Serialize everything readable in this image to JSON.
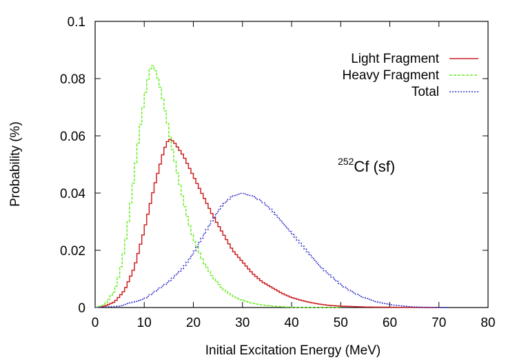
{
  "chart_data": {
    "type": "line",
    "title": "",
    "xlabel": "Initial Excitation Energy (MeV)",
    "ylabel": "Probability (%)",
    "xlim": [
      0,
      80
    ],
    "ylim": [
      0,
      0.1
    ],
    "xticks": [
      "0",
      "10",
      "20",
      "30",
      "40",
      "50",
      "60",
      "70",
      "80"
    ],
    "yticks": [
      "0",
      "0.02",
      "0.04",
      "0.06",
      "0.08",
      "0.1"
    ],
    "grid": false,
    "legend_position": "top-right",
    "annotation": {
      "superscript": "252",
      "text": "Cf (sf)"
    },
    "series": [
      {
        "name": "Light Fragment",
        "color": "#cc1f1f",
        "style": "solid",
        "x": [
          0,
          2,
          4,
          6,
          8,
          10,
          12,
          14,
          15,
          16,
          18,
          20,
          22,
          24,
          26,
          28,
          30,
          32,
          34,
          36,
          38,
          40,
          42,
          44,
          46,
          48,
          50,
          55,
          60,
          65,
          70
        ],
        "y": [
          0,
          0.0005,
          0.002,
          0.006,
          0.014,
          0.027,
          0.042,
          0.055,
          0.059,
          0.058,
          0.053,
          0.046,
          0.039,
          0.032,
          0.026,
          0.02,
          0.016,
          0.012,
          0.009,
          0.007,
          0.005,
          0.0035,
          0.0025,
          0.0017,
          0.0011,
          0.0007,
          0.0005,
          0.0002,
          0.0001,
          3e-05,
          0
        ]
      },
      {
        "name": "Heavy Fragment",
        "color": "#66ee22",
        "style": "dashed",
        "x": [
          0,
          2,
          4,
          5,
          6,
          7,
          8,
          9,
          10,
          11,
          11.5,
          12,
          13,
          14,
          15,
          16,
          17,
          18,
          19,
          20,
          22,
          24,
          26,
          28,
          30,
          32,
          34,
          36,
          38,
          40,
          45,
          50
        ],
        "y": [
          0,
          0.001,
          0.006,
          0.012,
          0.021,
          0.033,
          0.047,
          0.061,
          0.073,
          0.082,
          0.085,
          0.084,
          0.079,
          0.071,
          0.062,
          0.053,
          0.045,
          0.037,
          0.03,
          0.024,
          0.016,
          0.0105,
          0.0065,
          0.004,
          0.0025,
          0.0015,
          0.0009,
          0.0005,
          0.0003,
          0.0001,
          3e-05,
          0
        ]
      },
      {
        "name": "Total",
        "color": "#2a2acc",
        "style": "dotted",
        "x": [
          0,
          5,
          10,
          15,
          18,
          20,
          22,
          24,
          26,
          28,
          30,
          32,
          34,
          36,
          38,
          40,
          42,
          44,
          46,
          48,
          50,
          52,
          54,
          56,
          58,
          60,
          62,
          64,
          66,
          68,
          70,
          72
        ],
        "y": [
          0,
          0.0005,
          0.003,
          0.009,
          0.014,
          0.019,
          0.025,
          0.031,
          0.036,
          0.039,
          0.04,
          0.039,
          0.037,
          0.034,
          0.03,
          0.026,
          0.022,
          0.018,
          0.014,
          0.011,
          0.008,
          0.0058,
          0.004,
          0.0027,
          0.0017,
          0.001,
          0.0006,
          0.0003,
          0.00015,
          7e-05,
          3e-05,
          0
        ]
      }
    ]
  }
}
